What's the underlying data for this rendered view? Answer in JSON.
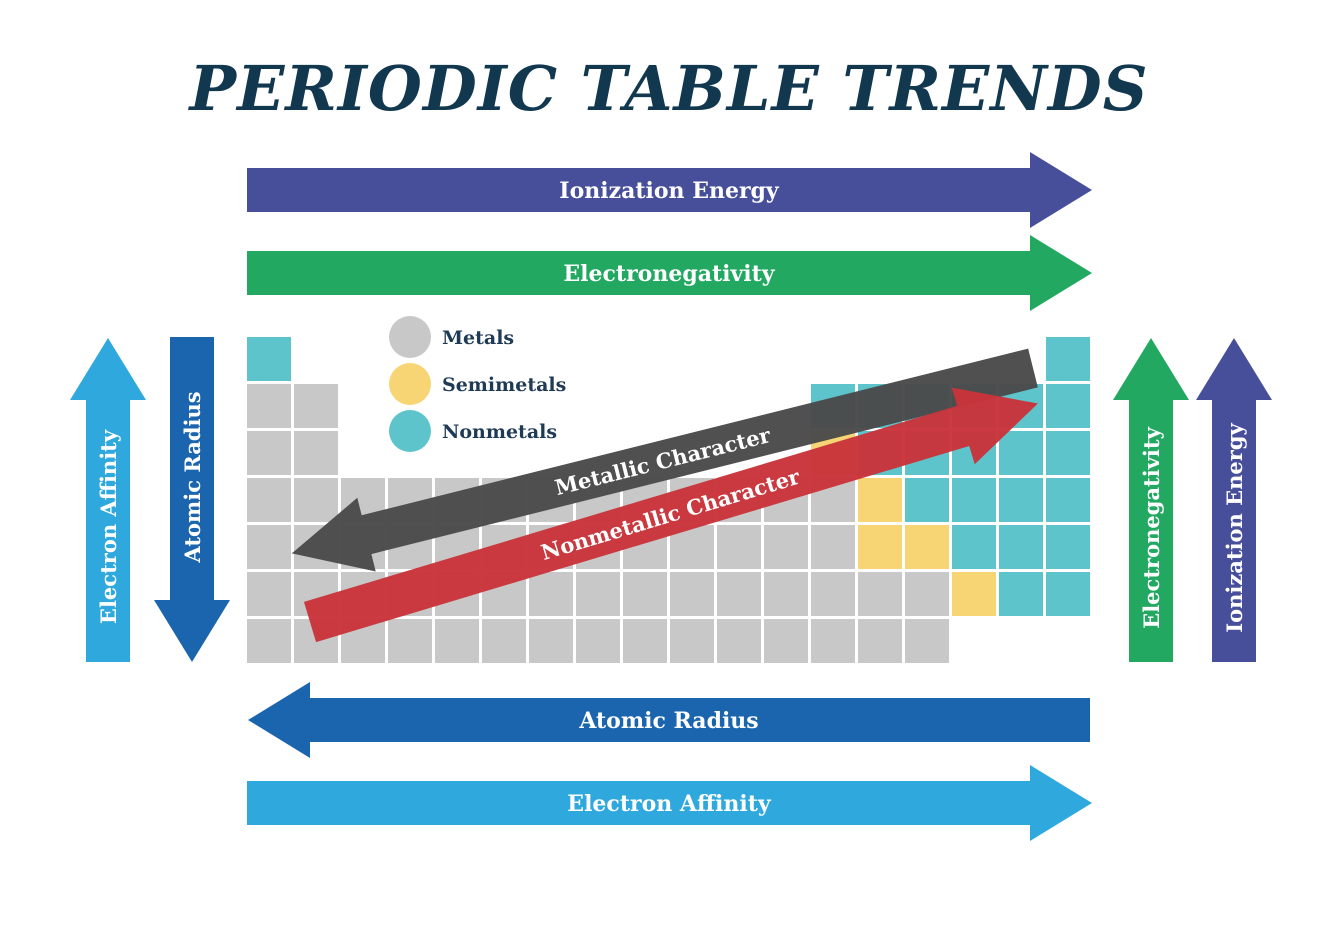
{
  "title": "PERIODIC TABLE TRENDS",
  "legend": [
    {
      "label": "Metals",
      "color": "#c8c8c8"
    },
    {
      "label": "Semimetals",
      "color": "#f8d574"
    },
    {
      "label": "Nonmetals",
      "color": "#5ec4cc"
    }
  ],
  "arrows": {
    "ionization_energy_top": {
      "label": "Ionization Energy",
      "color": "#474f9b"
    },
    "electronegativity_top": {
      "label": "Electronegativity",
      "color": "#22a860"
    },
    "atomic_radius_bottom": {
      "label": "Atomic Radius",
      "color": "#1a65ae"
    },
    "electron_affinity_bottom": {
      "label": "Electron Affinity",
      "color": "#2fa8dd"
    },
    "electron_affinity_left": {
      "label": "Electron Affinity",
      "color": "#2fa8dd"
    },
    "atomic_radius_left": {
      "label": "Atomic Radius",
      "color": "#1a65ae"
    },
    "electronegativity_right": {
      "label": "Electronegativity",
      "color": "#22a860"
    },
    "ionization_energy_right": {
      "label": "Ionization Energy",
      "color": "#474f9b"
    },
    "metallic_character": {
      "label": "Metallic Character",
      "color": "#4a4a4a"
    },
    "nonmetallic_character": {
      "label": "Nonmetallic Character",
      "color": "#c8343a"
    }
  },
  "colors": {
    "metal": "#c8c8c8",
    "semimetal": "#f8d574",
    "nonmetal": "#5ec4cc",
    "title": "#12384f"
  }
}
